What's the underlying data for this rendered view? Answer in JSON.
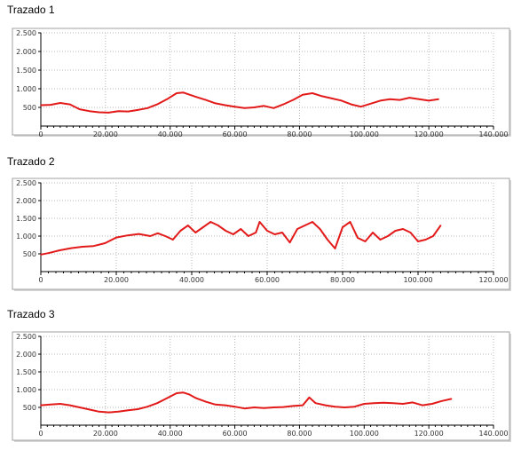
{
  "chart_data": [
    {
      "type": "line",
      "title": "Trazado 1",
      "xlim": [
        0,
        140000
      ],
      "ylim": [
        0,
        2500
      ],
      "xticks": [
        0,
        20000,
        40000,
        60000,
        80000,
        100000,
        120000,
        140000
      ],
      "xtick_labels": [
        "0",
        "20.000",
        "40.000",
        "60.000",
        "80.000",
        "100.000",
        "120.000",
        "140.000"
      ],
      "yticks": [
        500,
        1000,
        1500,
        2000,
        2500
      ],
      "ytick_labels": [
        "500",
        "1.000",
        "1.500",
        "2.000",
        "2.500"
      ],
      "grid": true,
      "line_color": "#e31a1a",
      "series": [
        {
          "x": [
            0,
            3000,
            6000,
            9000,
            12000,
            15000,
            18000,
            21000,
            24000,
            27000,
            30000,
            33000,
            36000,
            39000,
            42000,
            44000,
            46000,
            48000,
            51000,
            54000,
            57000,
            60000,
            63000,
            66000,
            69000,
            72000,
            75000,
            78000,
            81000,
            84000,
            87000,
            90000,
            93000,
            96000,
            99000,
            102000,
            105000,
            108000,
            111000,
            114000,
            117000,
            120000,
            123000
          ],
          "y": [
            560,
            570,
            620,
            580,
            450,
            400,
            370,
            360,
            400,
            390,
            430,
            480,
            580,
            720,
            880,
            900,
            840,
            780,
            700,
            610,
            560,
            520,
            480,
            500,
            540,
            480,
            580,
            700,
            840,
            880,
            800,
            740,
            680,
            580,
            520,
            600,
            680,
            720,
            700,
            760,
            720,
            680,
            720
          ]
        }
      ]
    },
    {
      "type": "line",
      "title": "Trazado 2",
      "xlim": [
        0,
        120000
      ],
      "ylim": [
        0,
        2500
      ],
      "xticks": [
        0,
        20000,
        40000,
        60000,
        80000,
        100000,
        120000
      ],
      "xtick_labels": [
        "0",
        "20.000",
        "40.000",
        "60.000",
        "80.000",
        "100.000",
        "120.000"
      ],
      "yticks": [
        500,
        1000,
        1500,
        2000,
        2500
      ],
      "ytick_labels": [
        "500",
        "1.000",
        "1.500",
        "2.000",
        "2.500"
      ],
      "grid": true,
      "line_color": "#e31a1a",
      "series": [
        {
          "x": [
            0,
            2000,
            5000,
            8000,
            11000,
            14000,
            17000,
            20000,
            23000,
            26000,
            29000,
            31000,
            33000,
            35000,
            37000,
            39000,
            41000,
            43000,
            45000,
            47000,
            49000,
            51000,
            53000,
            55000,
            57000,
            58000,
            60000,
            62000,
            64000,
            66000,
            68000,
            70000,
            72000,
            74000,
            76000,
            78000,
            80000,
            82000,
            84000,
            86000,
            88000,
            90000,
            92000,
            94000,
            96000,
            98000,
            100000,
            102000,
            104000,
            106000
          ],
          "y": [
            480,
            520,
            600,
            660,
            700,
            720,
            800,
            960,
            1020,
            1060,
            1000,
            1080,
            1000,
            900,
            1150,
            1300,
            1100,
            1250,
            1400,
            1300,
            1150,
            1050,
            1200,
            1000,
            1100,
            1400,
            1150,
            1050,
            1100,
            820,
            1200,
            1300,
            1400,
            1200,
            900,
            650,
            1250,
            1400,
            950,
            850,
            1100,
            900,
            1000,
            1150,
            1200,
            1100,
            850,
            900,
            1000,
            1300
          ]
        }
      ]
    },
    {
      "type": "line",
      "title": "Trazado 3",
      "xlim": [
        0,
        140000
      ],
      "ylim": [
        0,
        2500
      ],
      "xticks": [
        0,
        20000,
        40000,
        60000,
        80000,
        100000,
        120000,
        140000
      ],
      "xtick_labels": [
        "0",
        "20.000",
        "40.000",
        "60.000",
        "80.000",
        "100.000",
        "120.000",
        "140.000"
      ],
      "yticks": [
        500,
        1000,
        1500,
        2000,
        2500
      ],
      "ytick_labels": [
        "500",
        "1.000",
        "1.500",
        "2.000",
        "2.500"
      ],
      "grid": true,
      "line_color": "#e31a1a",
      "series": [
        {
          "x": [
            0,
            3000,
            6000,
            9000,
            12000,
            15000,
            18000,
            21000,
            24000,
            27000,
            30000,
            33000,
            36000,
            39000,
            42000,
            44000,
            46000,
            48000,
            51000,
            54000,
            57000,
            60000,
            63000,
            66000,
            69000,
            72000,
            75000,
            78000,
            81000,
            83000,
            85000,
            88000,
            91000,
            94000,
            97000,
            100000,
            103000,
            106000,
            109000,
            112000,
            115000,
            118000,
            121000,
            124000,
            127000
          ],
          "y": [
            560,
            580,
            600,
            560,
            500,
            440,
            380,
            360,
            380,
            420,
            450,
            520,
            620,
            760,
            900,
            920,
            860,
            760,
            660,
            580,
            560,
            520,
            470,
            500,
            480,
            500,
            510,
            540,
            560,
            780,
            620,
            560,
            520,
            500,
            520,
            600,
            620,
            630,
            620,
            600,
            640,
            560,
            600,
            680,
            740
          ]
        }
      ]
    }
  ]
}
